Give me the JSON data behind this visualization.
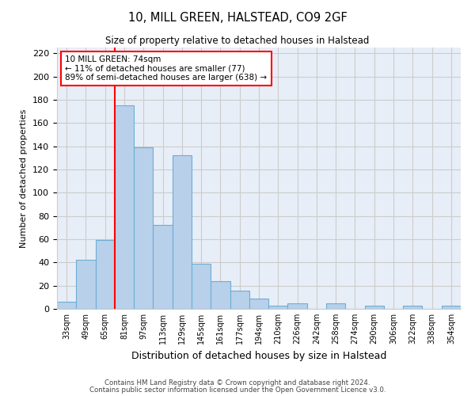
{
  "title_line1": "10, MILL GREEN, HALSTEAD, CO9 2GF",
  "title_line2": "Size of property relative to detached houses in Halstead",
  "xlabel": "Distribution of detached houses by size in Halstead",
  "ylabel": "Number of detached properties",
  "categories": [
    "33sqm",
    "49sqm",
    "65sqm",
    "81sqm",
    "97sqm",
    "113sqm",
    "129sqm",
    "145sqm",
    "161sqm",
    "177sqm",
    "194sqm",
    "210sqm",
    "226sqm",
    "242sqm",
    "258sqm",
    "274sqm",
    "290sqm",
    "306sqm",
    "322sqm",
    "338sqm",
    "354sqm"
  ],
  "values": [
    6,
    42,
    59,
    175,
    139,
    72,
    132,
    39,
    24,
    16,
    9,
    3,
    5,
    0,
    5,
    0,
    3,
    0,
    3,
    0,
    3
  ],
  "bar_color": "#b8d0ea",
  "bar_edge_color": "#6baed6",
  "annotation_text": "10 MILL GREEN: 74sqm\n← 11% of detached houses are smaller (77)\n89% of semi-detached houses are larger (638) →",
  "annotation_box_color": "white",
  "annotation_box_edge": "red",
  "vline_color": "red",
  "ylim": [
    0,
    225
  ],
  "yticks": [
    0,
    20,
    40,
    60,
    80,
    100,
    120,
    140,
    160,
    180,
    200,
    220
  ],
  "grid_color": "#cccccc",
  "background_color": "#e8eef7",
  "footer_line1": "Contains HM Land Registry data © Crown copyright and database right 2024.",
  "footer_line2": "Contains public sector information licensed under the Open Government Licence v3.0."
}
